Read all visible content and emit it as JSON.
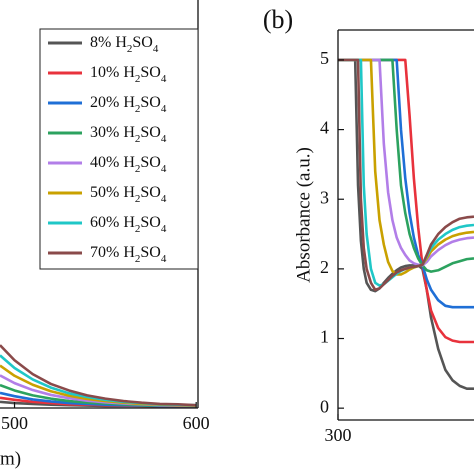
{
  "chart_data": [
    {
      "type": "line",
      "xlabel": "m)",
      "x": [
        492,
        500,
        510,
        520,
        530,
        540,
        550,
        560,
        570,
        580,
        590,
        600
      ],
      "xlim": [
        492,
        601
      ],
      "xticks": [
        500,
        600
      ],
      "ylim": [
        0,
        1
      ],
      "legend_loc": "upper right",
      "series": [
        {
          "name": "8% H2SO4",
          "color": "#555555",
          "values": [
            0.015,
            0.012,
            0.01,
            0.008,
            0.007,
            0.006,
            0.005,
            0.005,
            0.005,
            0.004,
            0.004,
            0.004
          ]
        },
        {
          "name": "10% H2SO4",
          "color": "#e8323c",
          "values": [
            0.025,
            0.02,
            0.015,
            0.012,
            0.009,
            0.008,
            0.007,
            0.006,
            0.005,
            0.005,
            0.005,
            0.004
          ]
        },
        {
          "name": "20% H2SO4",
          "color": "#1f6fd6",
          "values": [
            0.037,
            0.029,
            0.021,
            0.016,
            0.012,
            0.01,
            0.008,
            0.007,
            0.006,
            0.005,
            0.005,
            0.005
          ]
        },
        {
          "name": "30% H2SO4",
          "color": "#2ca25f",
          "values": [
            0.056,
            0.043,
            0.031,
            0.023,
            0.017,
            0.013,
            0.011,
            0.009,
            0.007,
            0.006,
            0.006,
            0.005
          ]
        },
        {
          "name": "40% H2SO4",
          "color": "#b27ee8",
          "values": [
            0.08,
            0.061,
            0.044,
            0.032,
            0.024,
            0.018,
            0.014,
            0.011,
            0.009,
            0.007,
            0.006,
            0.006
          ]
        },
        {
          "name": "50% H2SO4",
          "color": "#c9a100",
          "values": [
            0.104,
            0.079,
            0.057,
            0.041,
            0.03,
            0.022,
            0.017,
            0.013,
            0.01,
            0.008,
            0.007,
            0.006
          ]
        },
        {
          "name": "60% H2SO4",
          "color": "#1fc7c7",
          "values": [
            0.129,
            0.098,
            0.07,
            0.05,
            0.036,
            0.027,
            0.02,
            0.015,
            0.012,
            0.009,
            0.008,
            0.007
          ]
        },
        {
          "name": "70% H2SO4",
          "color": "#8a4a4a",
          "values": [
            0.154,
            0.117,
            0.083,
            0.059,
            0.043,
            0.031,
            0.023,
            0.017,
            0.013,
            0.01,
            0.009,
            0.007
          ]
        }
      ]
    },
    {
      "type": "line",
      "panel_label": "(b)",
      "ylabel": "Absorbance (a.u.)",
      "x": [
        300,
        312,
        314,
        316,
        318,
        320,
        323,
        326,
        329,
        332,
        335,
        338,
        341,
        344,
        347,
        350,
        353,
        356,
        359,
        362,
        365,
        370,
        375,
        380,
        385,
        390,
        395
      ],
      "xlim": [
        300,
        395
      ],
      "xticks": [
        300
      ],
      "ylim": [
        -0.17,
        5.43
      ],
      "yticks": [
        0,
        1,
        2,
        3,
        4,
        5
      ],
      "series": [
        {
          "color": "#555555",
          "values": [
            5,
            5,
            3.2,
            2.4,
            2.0,
            1.8,
            1.7,
            1.68,
            1.72,
            1.8,
            1.87,
            1.93,
            1.98,
            2.02,
            2.04,
            2.05,
            2.05,
            2.05,
            2.0,
            1.7,
            1.3,
            0.85,
            0.55,
            0.4,
            0.32,
            0.28,
            0.28
          ]
        },
        {
          "color": "#e8323c",
          "values": [
            5,
            5,
            5,
            5,
            5,
            5,
            5,
            5,
            5,
            5,
            5,
            5,
            5,
            5,
            5,
            4.2,
            3.3,
            2.6,
            2.05,
            1.7,
            1.4,
            1.15,
            1.02,
            0.97,
            0.95,
            0.95,
            0.95
          ]
        },
        {
          "color": "#1f6fd6",
          "values": [
            5,
            5,
            5,
            5,
            5,
            5,
            5,
            5,
            5,
            5,
            5,
            5,
            5,
            4.0,
            3.3,
            2.8,
            2.45,
            2.2,
            2.05,
            1.85,
            1.7,
            1.55,
            1.47,
            1.45,
            1.45,
            1.45,
            1.45
          ]
        },
        {
          "color": "#2ca25f",
          "values": [
            5,
            5,
            5,
            5,
            5,
            5,
            5,
            5,
            5,
            5,
            5,
            5,
            4.0,
            3.2,
            2.8,
            2.5,
            2.3,
            2.15,
            2.05,
            1.98,
            1.96,
            1.98,
            2.03,
            2.08,
            2.11,
            2.14,
            2.15
          ]
        },
        {
          "color": "#b27ee8",
          "values": [
            5,
            5,
            5,
            5,
            5,
            5,
            5,
            5,
            5,
            3.8,
            3.1,
            2.7,
            2.45,
            2.3,
            2.2,
            2.12,
            2.08,
            2.06,
            2.05,
            2.1,
            2.18,
            2.27,
            2.34,
            2.39,
            2.42,
            2.44,
            2.45
          ]
        },
        {
          "color": "#c9a100",
          "values": [
            5,
            5,
            5,
            5,
            5,
            5,
            5,
            3.4,
            2.7,
            2.35,
            2.1,
            1.97,
            1.92,
            1.92,
            1.95,
            1.99,
            2.02,
            2.04,
            2.06,
            2.15,
            2.25,
            2.35,
            2.42,
            2.47,
            2.5,
            2.52,
            2.53
          ]
        },
        {
          "color": "#1fc7c7",
          "values": [
            5,
            5,
            5,
            5,
            3.2,
            2.5,
            2.0,
            1.8,
            1.76,
            1.78,
            1.83,
            1.88,
            1.93,
            1.97,
            2.0,
            2.02,
            2.03,
            2.04,
            2.06,
            2.18,
            2.3,
            2.42,
            2.5,
            2.56,
            2.6,
            2.62,
            2.63
          ]
        },
        {
          "color": "#8a4a4a",
          "values": [
            5,
            5,
            5,
            3.0,
            2.3,
            2.0,
            1.8,
            1.7,
            1.72,
            1.78,
            1.84,
            1.9,
            1.95,
            1.98,
            2.0,
            2.02,
            2.03,
            2.04,
            2.06,
            2.2,
            2.35,
            2.5,
            2.6,
            2.67,
            2.72,
            2.74,
            2.75
          ]
        }
      ]
    }
  ]
}
